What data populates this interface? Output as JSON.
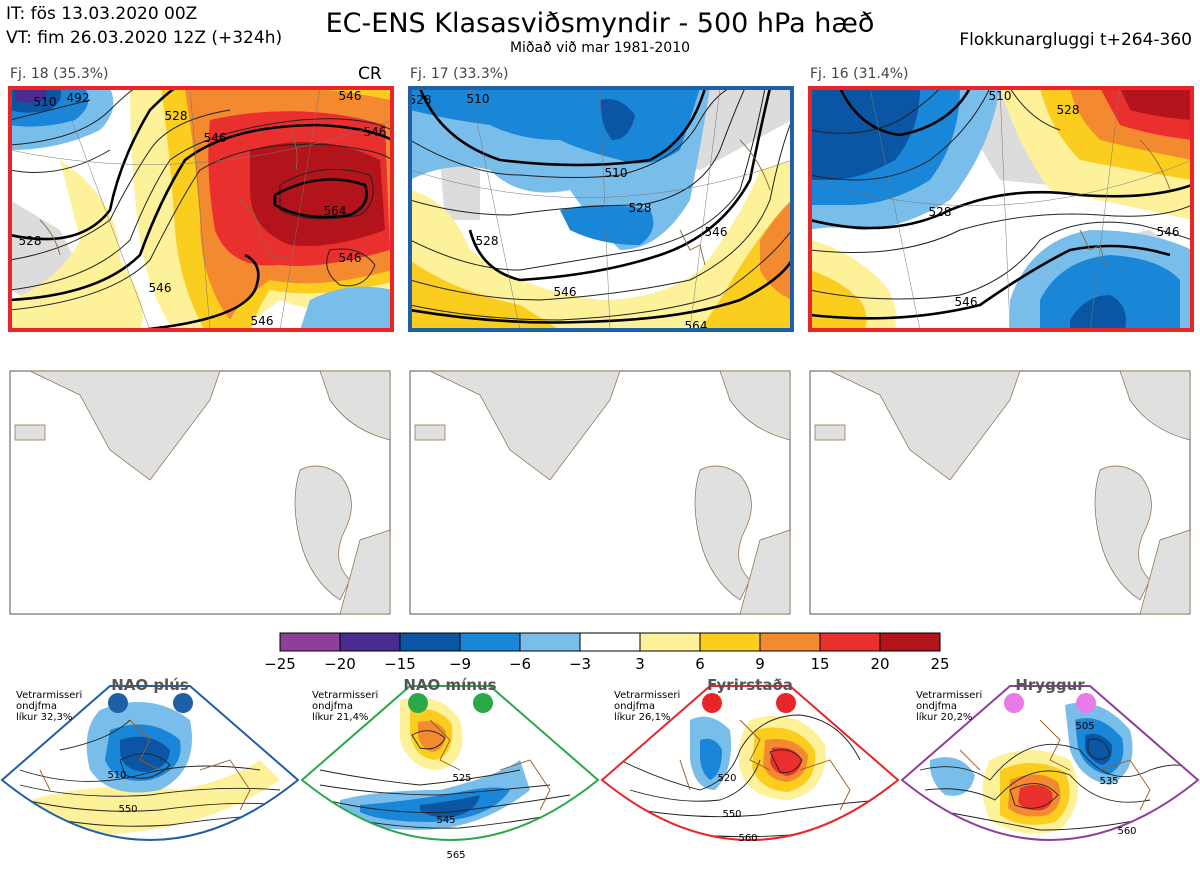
{
  "header": {
    "init_time": "IT: fös 13.03.2020 00Z",
    "valid_time": "VT: fim 26.03.2020 12Z  (+324h)",
    "title": "EC-ENS Klasasviðsmyndir - 500 hPa hæð",
    "subtitle": "Miðað við mar 1981-2010",
    "window": "Flokkunargluggi t+264-360"
  },
  "clusters": [
    {
      "label": "Fj. 18 (35.3%)",
      "border_color": "#e8262a",
      "tag": "CR",
      "contours": [
        "492",
        "510",
        "528",
        "546",
        "546",
        "564",
        "546",
        "528",
        "546",
        "546",
        "546"
      ]
    },
    {
      "label": "Fj. 17 (33.3%)",
      "border_color": "#1e5fa8",
      "contours": [
        "528",
        "510",
        "510",
        "528",
        "528",
        "546",
        "546",
        "564"
      ]
    },
    {
      "label": "Fj. 16 (31.4%)",
      "border_color": "#e8262a",
      "contours": [
        "510",
        "528",
        "528",
        "546",
        "546"
      ]
    }
  ],
  "colorbar": {
    "ticks": [
      "−25",
      "−20",
      "−15",
      "−9",
      "−6",
      "−3",
      "3",
      "6",
      "9",
      "15",
      "20",
      "25"
    ],
    "colors": [
      "#8e3f9a",
      "#4b2a93",
      "#0b56a4",
      "#1a86d8",
      "#79bdea",
      "#ffffff",
      "#fdf19a",
      "#fbcd1e",
      "#f48a2f",
      "#e9302f",
      "#b3131a"
    ]
  },
  "regimes": [
    {
      "name": "NAO plús",
      "note": "Vetrarmisseri",
      "note2": "ondjfma",
      "prob": "líkur 32,3%",
      "color": "#1e5fa8",
      "contours": [
        "510",
        "550"
      ]
    },
    {
      "name": "NAO mínus",
      "note": "Vetrarmisseri",
      "note2": "ondjfma",
      "prob": "líkur 21,4%",
      "color": "#2aa84a",
      "contours": [
        "525",
        "545",
        "565"
      ]
    },
    {
      "name": "Fyrirstaða",
      "note": "Vetrarmisseri",
      "note2": "ondjfma",
      "prob": "líkur 26,1%",
      "color": "#e8262a",
      "contours": [
        "520",
        "550",
        "560"
      ]
    },
    {
      "name": "Hryggur",
      "note": "Vetrarmisseri",
      "note2": "ondjfma",
      "prob": "líkur 20,2%",
      "color": "#8e3f9a",
      "dot_color": "#e97ae9",
      "contours": [
        "505",
        "535",
        "560"
      ]
    }
  ]
}
